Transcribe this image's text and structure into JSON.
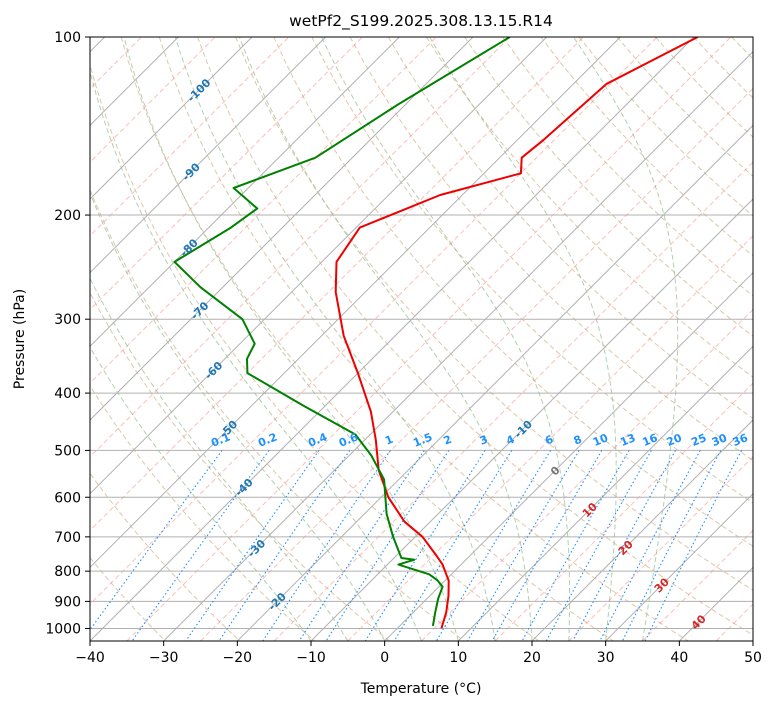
{
  "chart_data": {
    "type": "skew-t log-p",
    "title": "wetPf2_S199.2025.308.13.15.R14",
    "xlabel": "Temperature (°C)",
    "ylabel": "Pressure (hPa)",
    "xlim": [
      -40,
      50
    ],
    "ylim": [
      1050,
      100
    ],
    "x_ticks": [
      -40,
      -30,
      -20,
      -10,
      0,
      10,
      20,
      30,
      40,
      50
    ],
    "p_ticks": [
      100,
      200,
      300,
      400,
      500,
      600,
      700,
      800,
      900,
      1000
    ],
    "grid": true,
    "colors": {
      "temperature": "#ee0000",
      "dewpoint": "#008000",
      "dry_adiabat": "#d2b48c",
      "moist_adiabat": "#8fbc8f",
      "isotherm": "#fa8072",
      "mixing_ratio": "#1e90ff",
      "isotherm_label_cold": "#1f77b4",
      "isotherm_label_warm": "#d62728",
      "isotherm_label_zero": "#777777"
    },
    "isotherm_labels": {
      "cold": [
        "-100",
        "-90",
        "-80",
        "-70",
        "-60",
        "-50",
        "-40",
        "-30",
        "-20",
        "-10"
      ],
      "zero": [
        "0"
      ],
      "warm": [
        "10",
        "20",
        "30",
        "40"
      ]
    },
    "mixing_ratio_labels": [
      "0.1",
      "0.2",
      "0.4",
      "0.6",
      "1",
      "1.5",
      "2",
      "3",
      "4",
      "6",
      "8",
      "10",
      "13",
      "16",
      "20",
      "25",
      "30",
      "36"
    ],
    "mixing_ratio_values": [
      0.1,
      0.2,
      0.4,
      0.6,
      1,
      1.5,
      2,
      3,
      4,
      6,
      8,
      10,
      13,
      16,
      20,
      25,
      30,
      36
    ],
    "series": [
      {
        "name": "temperature",
        "points": [
          [
            -39.5,
            100
          ],
          [
            -45.5,
            120
          ],
          [
            -46.5,
            150
          ],
          [
            -47,
            160
          ],
          [
            -45,
            170
          ],
          [
            -53,
            185
          ],
          [
            -59.5,
            210
          ],
          [
            -58,
            240
          ],
          [
            -54,
            270
          ],
          [
            -47,
            320
          ],
          [
            -40,
            370
          ],
          [
            -33,
            430
          ],
          [
            -28.5,
            480
          ],
          [
            -24,
            540
          ],
          [
            -19,
            600
          ],
          [
            -13.5,
            660
          ],
          [
            -9,
            700
          ],
          [
            -4.8,
            750
          ],
          [
            -2.5,
            780
          ],
          [
            -1,
            805
          ],
          [
            0.5,
            830
          ],
          [
            2.5,
            880
          ],
          [
            4.5,
            940
          ],
          [
            6,
            1000
          ]
        ]
      },
      {
        "name": "dewpoint",
        "points": [
          [
            -65,
            100
          ],
          [
            -71,
            130
          ],
          [
            -75,
            160
          ],
          [
            -82,
            180
          ],
          [
            -76,
            195
          ],
          [
            -77,
            210
          ],
          [
            -80,
            240
          ],
          [
            -73,
            265
          ],
          [
            -63,
            300
          ],
          [
            -58,
            330
          ],
          [
            -57,
            350
          ],
          [
            -55,
            370
          ],
          [
            -50,
            390
          ],
          [
            -43,
            420
          ],
          [
            -32,
            470
          ],
          [
            -27,
            510
          ],
          [
            -22,
            560
          ],
          [
            -17,
            640
          ],
          [
            -13,
            700
          ],
          [
            -9,
            760
          ],
          [
            -7,
            765
          ],
          [
            -8.5,
            780
          ],
          [
            -3,
            810
          ],
          [
            -1,
            830
          ],
          [
            0.5,
            850
          ],
          [
            1.5,
            890
          ],
          [
            3,
            940
          ],
          [
            4.5,
            990
          ]
        ]
      }
    ]
  }
}
